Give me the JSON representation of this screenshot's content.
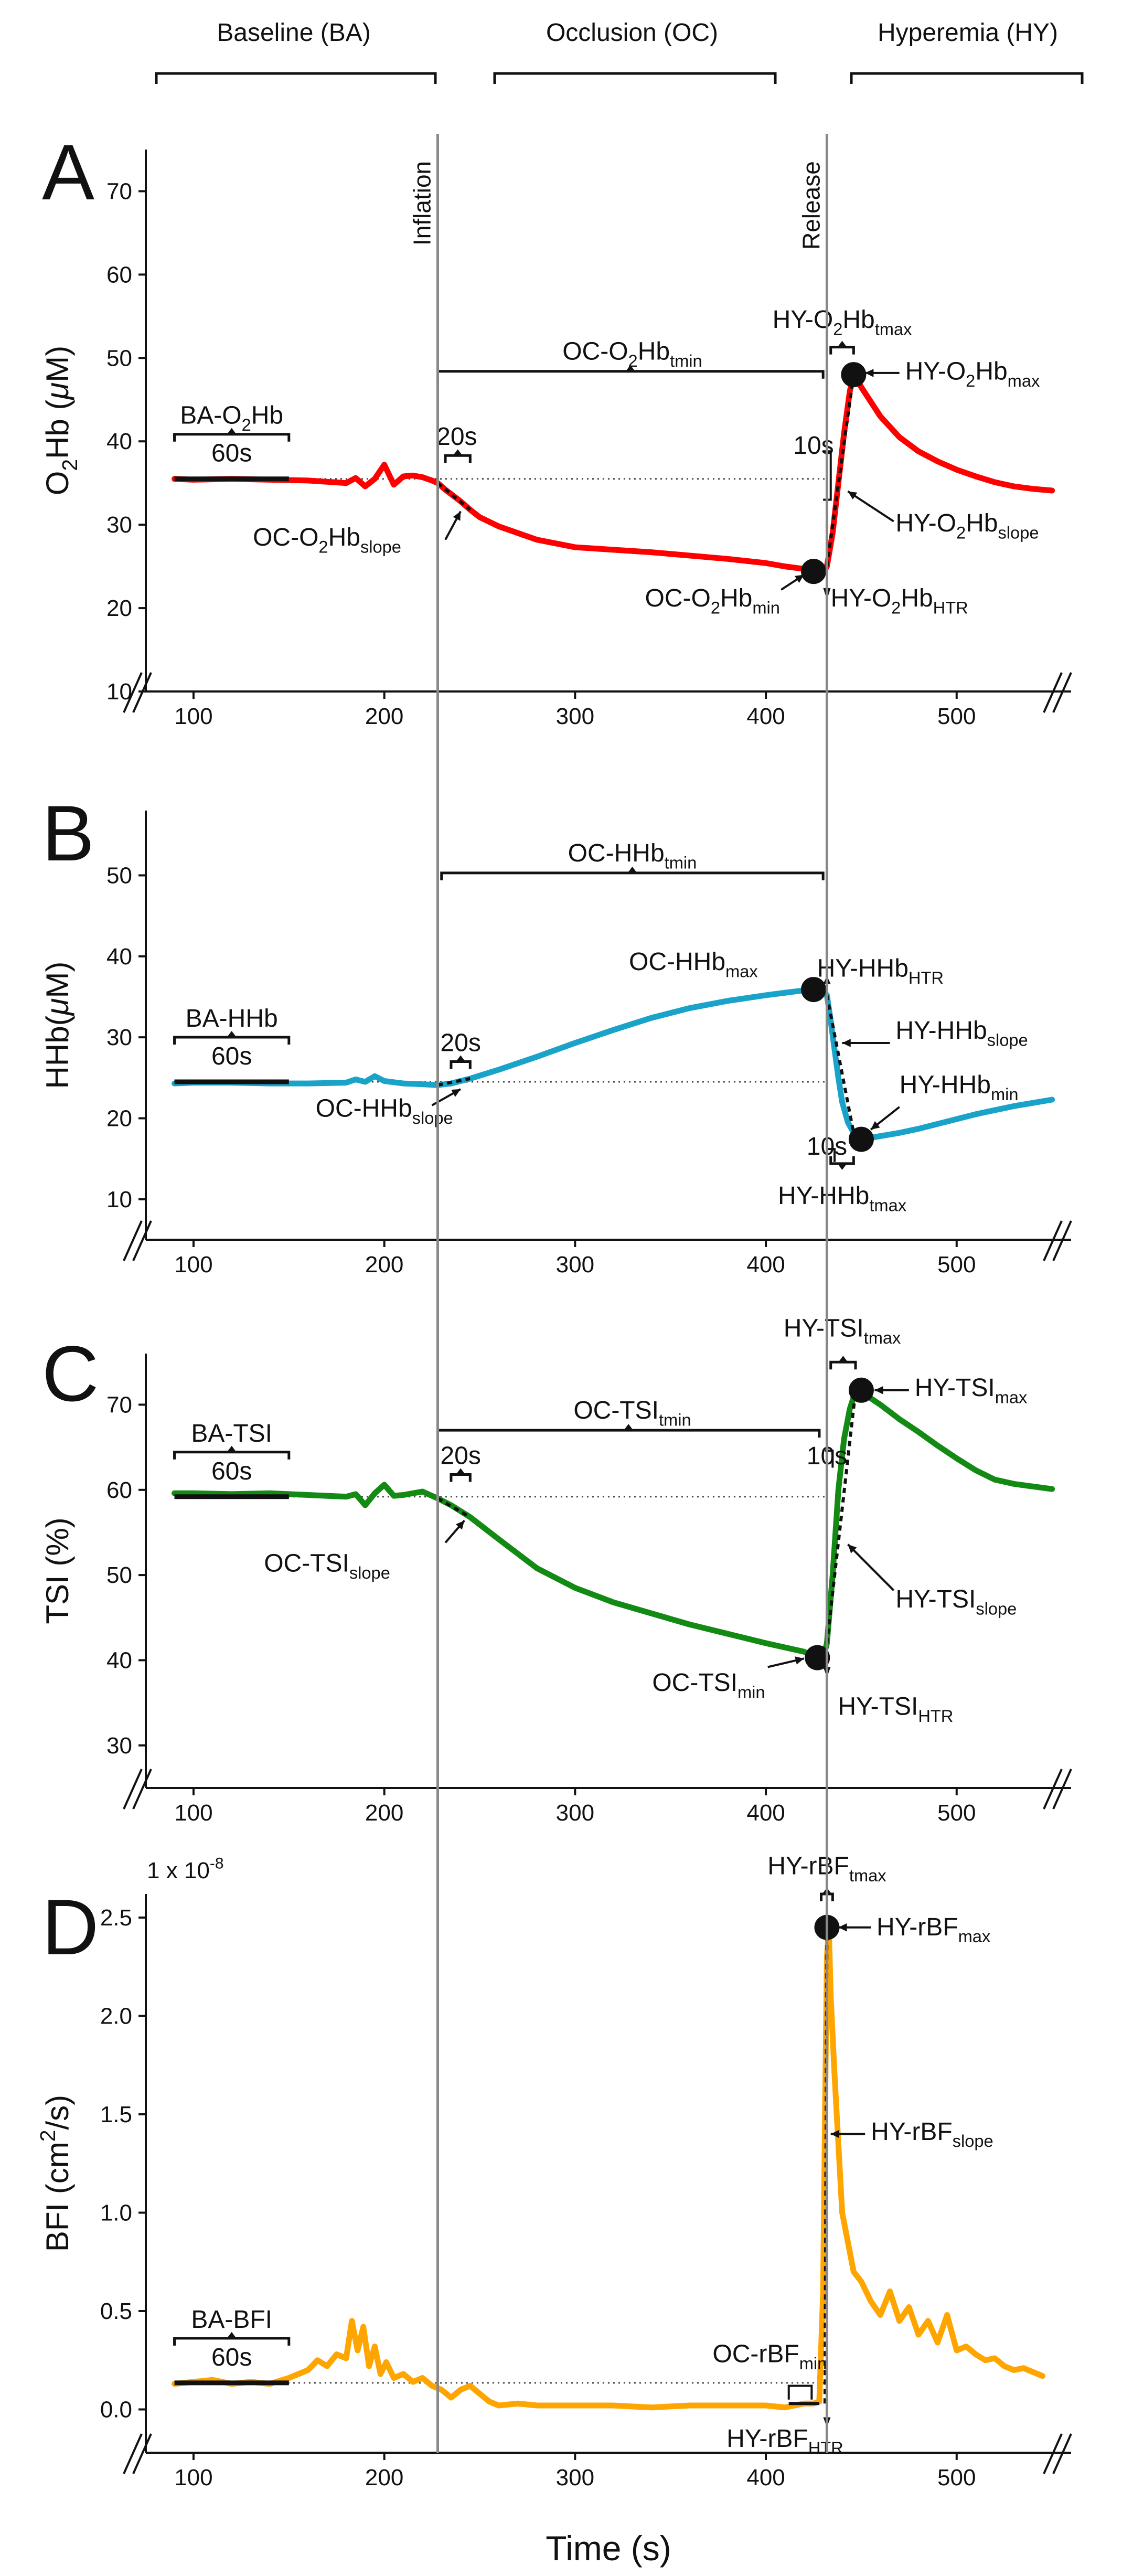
{
  "figure": {
    "phases": [
      {
        "name": "Baseline (BA)"
      },
      {
        "name": "Occlusion (OC)"
      },
      {
        "name": "Hyperemia (HY)"
      }
    ],
    "event_labels": {
      "inflation": "Inflation",
      "release": "Release"
    },
    "xlabel": "Time (s)",
    "x_ticks": [
      100,
      200,
      300,
      400,
      500
    ],
    "events": {
      "inflation_time": 228,
      "release_time": 432
    },
    "break_mark": "//"
  },
  "chart_data": [
    {
      "type": "line",
      "panel": "A",
      "color": "#ff0000",
      "ylabel_parts": [
        {
          "t": "O"
        },
        {
          "t": "2",
          "sub": true
        },
        {
          "t": "Hb ("
        },
        {
          "t": "μ",
          "italic": true
        },
        {
          "t": "M)"
        }
      ],
      "ylim": [
        10,
        75
      ],
      "yticks": [
        10,
        20,
        30,
        40,
        50,
        60,
        70
      ],
      "xlim": [
        75,
        560
      ],
      "baseline_level": 35.5,
      "series": {
        "name": "O2Hb",
        "x": [
          90,
          100,
          120,
          140,
          160,
          180,
          185,
          190,
          195,
          200,
          205,
          210,
          215,
          220,
          225,
          228,
          232,
          236,
          240,
          245,
          250,
          260,
          280,
          300,
          320,
          340,
          360,
          380,
          400,
          410,
          420,
          425,
          428,
          430,
          432,
          435,
          438,
          441,
          444,
          446,
          450,
          460,
          470,
          480,
          490,
          500,
          510,
          520,
          530,
          540,
          550
        ],
        "y": [
          35.5,
          35.4,
          35.5,
          35.4,
          35.3,
          35.0,
          35.6,
          34.6,
          35.5,
          37.2,
          34.8,
          35.8,
          35.9,
          35.7,
          35.3,
          35.0,
          34.2,
          33.5,
          32.8,
          31.8,
          30.9,
          29.8,
          28.2,
          27.3,
          27.0,
          26.7,
          26.3,
          25.9,
          25.4,
          25.0,
          24.7,
          24.5,
          24.3,
          24.2,
          25.0,
          29.0,
          35.0,
          41.0,
          46.0,
          48.0,
          46.5,
          43.0,
          40.5,
          38.8,
          37.6,
          36.6,
          35.8,
          35.1,
          34.6,
          34.3,
          34.1
        ]
      },
      "labels": {
        "ba": [
          {
            "t": "BA-O"
          },
          {
            "t": "2",
            "sub": true
          },
          {
            "t": "Hb"
          }
        ],
        "ba_dur": "60s",
        "oc_tmin": [
          {
            "t": "OC-O"
          },
          {
            "t": "2",
            "sub": true
          },
          {
            "t": "Hb"
          },
          {
            "t": "tmin",
            "sub": true
          }
        ],
        "oc_slope_dur": "20s",
        "oc_slope": [
          {
            "t": "OC-O"
          },
          {
            "t": "2",
            "sub": true
          },
          {
            "t": "Hb"
          },
          {
            "t": "slope",
            "sub": true
          }
        ],
        "oc_min": [
          {
            "t": "OC-O"
          },
          {
            "t": "2",
            "sub": true
          },
          {
            "t": "Hb"
          },
          {
            "t": "min",
            "sub": true
          }
        ],
        "hy_htr": [
          {
            "t": "HY-O"
          },
          {
            "t": "2",
            "sub": true
          },
          {
            "t": "Hb"
          },
          {
            "t": "HTR",
            "sub": true
          }
        ],
        "hy_dur": "10s",
        "hy_tmax": [
          {
            "t": "HY-O"
          },
          {
            "t": "2",
            "sub": true
          },
          {
            "t": "Hb"
          },
          {
            "t": "tmax",
            "sub": true
          }
        ],
        "hy_max": [
          {
            "t": "HY-O"
          },
          {
            "t": "2",
            "sub": true
          },
          {
            "t": "Hb"
          },
          {
            "t": "max",
            "sub": true
          }
        ],
        "hy_slope": [
          {
            "t": "HY-O"
          },
          {
            "t": "2",
            "sub": true
          },
          {
            "t": "Hb"
          },
          {
            "t": "slope",
            "sub": true
          }
        ]
      },
      "markers": {
        "min": [
          425,
          24.4
        ],
        "max": [
          446,
          48.0
        ]
      }
    },
    {
      "type": "line",
      "panel": "B",
      "color": "#1aa3c8",
      "ylabel_parts": [
        {
          "t": "HHb("
        },
        {
          "t": "μ",
          "italic": true
        },
        {
          "t": "M)"
        }
      ],
      "ylim": [
        5,
        58
      ],
      "yticks": [
        10,
        20,
        30,
        40,
        50
      ],
      "xlim": [
        75,
        560
      ],
      "baseline_level": 24.5,
      "series": {
        "name": "HHb",
        "x": [
          90,
          100,
          120,
          140,
          160,
          180,
          185,
          190,
          195,
          200,
          210,
          220,
          228,
          235,
          245,
          260,
          280,
          300,
          320,
          340,
          360,
          380,
          400,
          410,
          420,
          425,
          428,
          430,
          432,
          434,
          436,
          438,
          440,
          443,
          446,
          450,
          455,
          460,
          470,
          480,
          490,
          500,
          510,
          520,
          530,
          540,
          550
        ],
        "y": [
          24.3,
          24.4,
          24.4,
          24.3,
          24.3,
          24.4,
          24.8,
          24.5,
          25.2,
          24.6,
          24.3,
          24.2,
          24.1,
          24.3,
          24.9,
          26.0,
          27.6,
          29.3,
          30.9,
          32.4,
          33.6,
          34.5,
          35.2,
          35.5,
          35.8,
          35.9,
          35.9,
          35.7,
          35.2,
          32.0,
          28.5,
          25.0,
          22.0,
          19.5,
          18.2,
          17.5,
          17.6,
          17.8,
          18.2,
          18.7,
          19.3,
          19.9,
          20.5,
          21.0,
          21.5,
          21.9,
          22.3
        ]
      },
      "labels": {
        "ba": [
          {
            "t": "BA-HHb"
          }
        ],
        "ba_dur": "60s",
        "oc_tmin": [
          {
            "t": "OC-HHb"
          },
          {
            "t": "tmin",
            "sub": true
          }
        ],
        "oc_slope_dur": "20s",
        "oc_slope": [
          {
            "t": "OC-HHb"
          },
          {
            "t": "slope",
            "sub": true
          }
        ],
        "oc_max": [
          {
            "t": "OC-HHb"
          },
          {
            "t": "max",
            "sub": true
          }
        ],
        "hy_htr": [
          {
            "t": "HY-HHb"
          },
          {
            "t": "HTR",
            "sub": true
          }
        ],
        "hy_dur": "10s",
        "hy_tmax": [
          {
            "t": "HY-HHb"
          },
          {
            "t": "tmax",
            "sub": true
          }
        ],
        "hy_min": [
          {
            "t": "HY-HHb"
          },
          {
            "t": "min",
            "sub": true
          }
        ],
        "hy_slope": [
          {
            "t": "HY-HHb"
          },
          {
            "t": "slope",
            "sub": true
          }
        ]
      },
      "markers": {
        "oc_max": [
          425,
          35.9
        ],
        "hy_min": [
          450,
          17.4
        ]
      }
    },
    {
      "type": "line",
      "panel": "C",
      "color": "#138a13",
      "ylabel_parts": [
        {
          "t": "TSI (%)"
        }
      ],
      "ylim": [
        25,
        76
      ],
      "yticks": [
        30,
        40,
        50,
        60,
        70
      ],
      "xlim": [
        75,
        560
      ],
      "baseline_level": 59.2,
      "series": {
        "name": "TSI",
        "x": [
          90,
          100,
          120,
          140,
          160,
          180,
          185,
          190,
          195,
          200,
          205,
          210,
          215,
          220,
          225,
          228,
          235,
          245,
          260,
          280,
          300,
          320,
          340,
          360,
          380,
          400,
          410,
          420,
          425,
          428,
          430,
          432,
          435,
          438,
          441,
          444,
          447,
          450,
          460,
          470,
          480,
          490,
          500,
          510,
          520,
          530,
          540,
          550
        ],
        "y": [
          59.6,
          59.6,
          59.5,
          59.6,
          59.4,
          59.2,
          59.5,
          58.2,
          59.6,
          60.6,
          59.3,
          59.4,
          59.6,
          59.8,
          59.3,
          59.0,
          58.2,
          56.8,
          54.2,
          50.8,
          48.5,
          46.8,
          45.5,
          44.2,
          43.1,
          42.0,
          41.5,
          41.0,
          40.5,
          40.3,
          40.2,
          42.0,
          50.0,
          60.0,
          66.0,
          69.5,
          71.6,
          71.5,
          70.0,
          68.3,
          66.8,
          65.2,
          63.7,
          62.3,
          61.2,
          60.7,
          60.4,
          60.1
        ]
      },
      "labels": {
        "ba": [
          {
            "t": "BA-TSI"
          }
        ],
        "ba_dur": "60s",
        "oc_tmin": [
          {
            "t": "OC-TSI"
          },
          {
            "t": "tmin",
            "sub": true
          }
        ],
        "oc_slope_dur": "20s",
        "oc_slope": [
          {
            "t": "OC-TSI"
          },
          {
            "t": "slope",
            "sub": true
          }
        ],
        "oc_min": [
          {
            "t": "OC-TSI"
          },
          {
            "t": "min",
            "sub": true
          }
        ],
        "hy_htr": [
          {
            "t": "HY-TSI"
          },
          {
            "t": "HTR",
            "sub": true
          }
        ],
        "hy_dur": "10s",
        "hy_tmax": [
          {
            "t": "HY-TSI"
          },
          {
            "t": "tmax",
            "sub": true
          }
        ],
        "hy_max": [
          {
            "t": "HY-TSI"
          },
          {
            "t": "max",
            "sub": true
          }
        ],
        "hy_slope": [
          {
            "t": "HY-TSI"
          },
          {
            "t": "slope",
            "sub": true
          }
        ]
      },
      "markers": {
        "min": [
          427,
          40.3
        ],
        "max": [
          450,
          71.7
        ]
      }
    },
    {
      "type": "line",
      "panel": "D",
      "color": "#ffa500",
      "ylabel_parts": [
        {
          "t": "BFI (cm"
        },
        {
          "t": "2",
          "sup": true
        },
        {
          "t": "/s)"
        }
      ],
      "y_scale_label": [
        {
          "t": "1 x 10"
        },
        {
          "t": "-8",
          "sup": true
        }
      ],
      "ylim": [
        -0.22,
        2.62
      ],
      "yticks": [
        0.0,
        0.5,
        1.0,
        1.5,
        2.0,
        2.5
      ],
      "ytick_labels": [
        "0.0",
        "0.5",
        "1.0",
        "1.5",
        "2.0",
        "2.5"
      ],
      "xlim": [
        75,
        560
      ],
      "baseline_level": 0.135,
      "series": {
        "name": "BFI",
        "x": [
          90,
          100,
          110,
          120,
          130,
          140,
          150,
          155,
          160,
          165,
          170,
          175,
          180,
          183,
          186,
          189,
          192,
          195,
          198,
          201,
          205,
          210,
          215,
          220,
          225,
          230,
          235,
          240,
          245,
          250,
          255,
          260,
          270,
          280,
          300,
          320,
          340,
          360,
          380,
          400,
          410,
          420,
          425,
          428,
          430,
          431,
          432,
          433,
          434,
          436,
          438,
          440,
          443,
          446,
          450,
          455,
          460,
          465,
          470,
          475,
          480,
          485,
          490,
          495,
          500,
          505,
          510,
          515,
          520,
          525,
          530,
          535,
          540,
          545
        ],
        "y": [
          0.13,
          0.14,
          0.15,
          0.13,
          0.14,
          0.13,
          0.16,
          0.18,
          0.2,
          0.25,
          0.22,
          0.28,
          0.26,
          0.45,
          0.3,
          0.42,
          0.22,
          0.32,
          0.18,
          0.24,
          0.16,
          0.18,
          0.14,
          0.16,
          0.12,
          0.1,
          0.06,
          0.1,
          0.12,
          0.08,
          0.04,
          0.02,
          0.03,
          0.02,
          0.02,
          0.02,
          0.01,
          0.02,
          0.02,
          0.02,
          0.01,
          0.03,
          0.03,
          0.04,
          0.6,
          1.5,
          2.3,
          2.45,
          2.1,
          1.7,
          1.35,
          1.0,
          0.85,
          0.7,
          0.65,
          0.55,
          0.48,
          0.6,
          0.45,
          0.52,
          0.38,
          0.45,
          0.34,
          0.48,
          0.3,
          0.32,
          0.28,
          0.25,
          0.26,
          0.22,
          0.2,
          0.21,
          0.19,
          0.17
        ]
      },
      "labels": {
        "ba": [
          {
            "t": "BA-BFI"
          }
        ],
        "ba_dur": "60s",
        "oc_min": [
          {
            "t": "OC-rBF"
          },
          {
            "t": "min",
            "sub": true
          }
        ],
        "hy_htr": [
          {
            "t": "HY-rBF"
          },
          {
            "t": "HTR",
            "sub": true
          }
        ],
        "hy_tmax": [
          {
            "t": "HY-rBF"
          },
          {
            "t": "tmax",
            "sub": true
          }
        ],
        "hy_max": [
          {
            "t": "HY-rBF"
          },
          {
            "t": "max",
            "sub": true
          }
        ],
        "hy_slope": [
          {
            "t": "HY-rBF"
          },
          {
            "t": "slope",
            "sub": true
          }
        ]
      },
      "markers": {
        "max": [
          432,
          2.45
        ]
      }
    }
  ]
}
